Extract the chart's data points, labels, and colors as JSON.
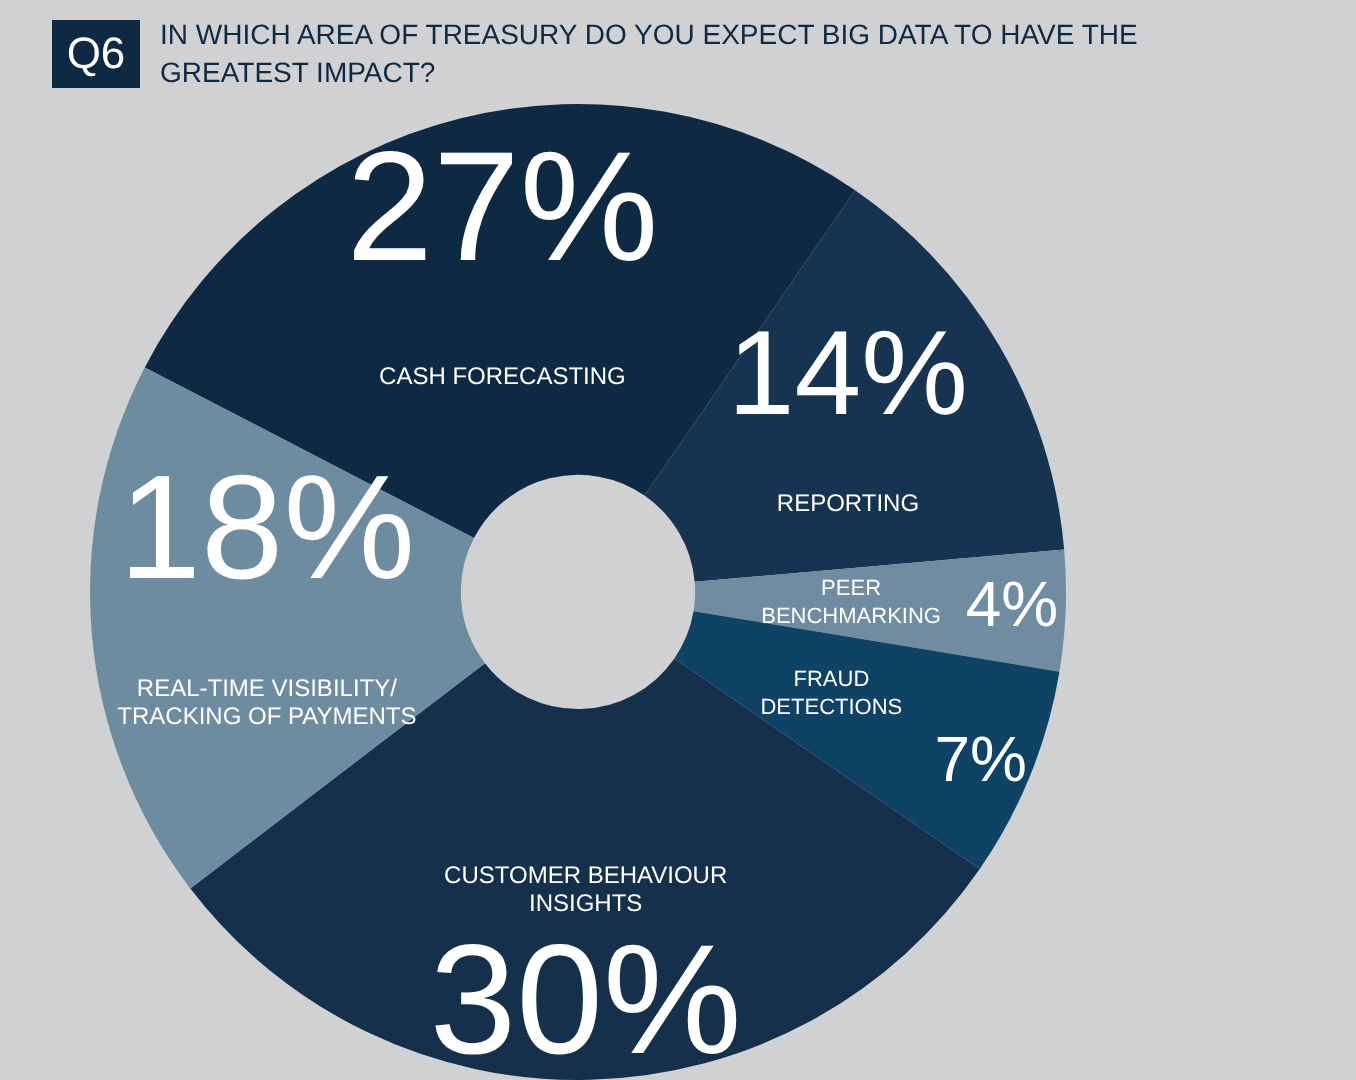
{
  "chart_data": {
    "type": "donut",
    "title": "IN WHICH AREA OF TREASURY DO YOU EXPECT BIG DATA TO HAVE THE GREATEST IMPACT?",
    "annotations": [
      "Q6"
    ],
    "categories": [
      "CASH FORECASTING",
      "REPORTING",
      "PEER BENCHMARKING",
      "FRAUD DETECTIONS",
      "CUSTOMER BEHAVIOUR INSIGHTS",
      "REAL-TIME VISIBILITY/ TRACKING OF PAYMENTS"
    ],
    "values": [
      27,
      14,
      4,
      7,
      30,
      18
    ],
    "value_labels": [
      "27%",
      "14%",
      "4%",
      "7%",
      "30%",
      "18%"
    ],
    "colors": [
      "#0d2a42",
      "#16344f",
      "#6f8ca0",
      "#0f4366",
      "#15304a",
      "#6e8ca0"
    ],
    "legend": false
  }
}
